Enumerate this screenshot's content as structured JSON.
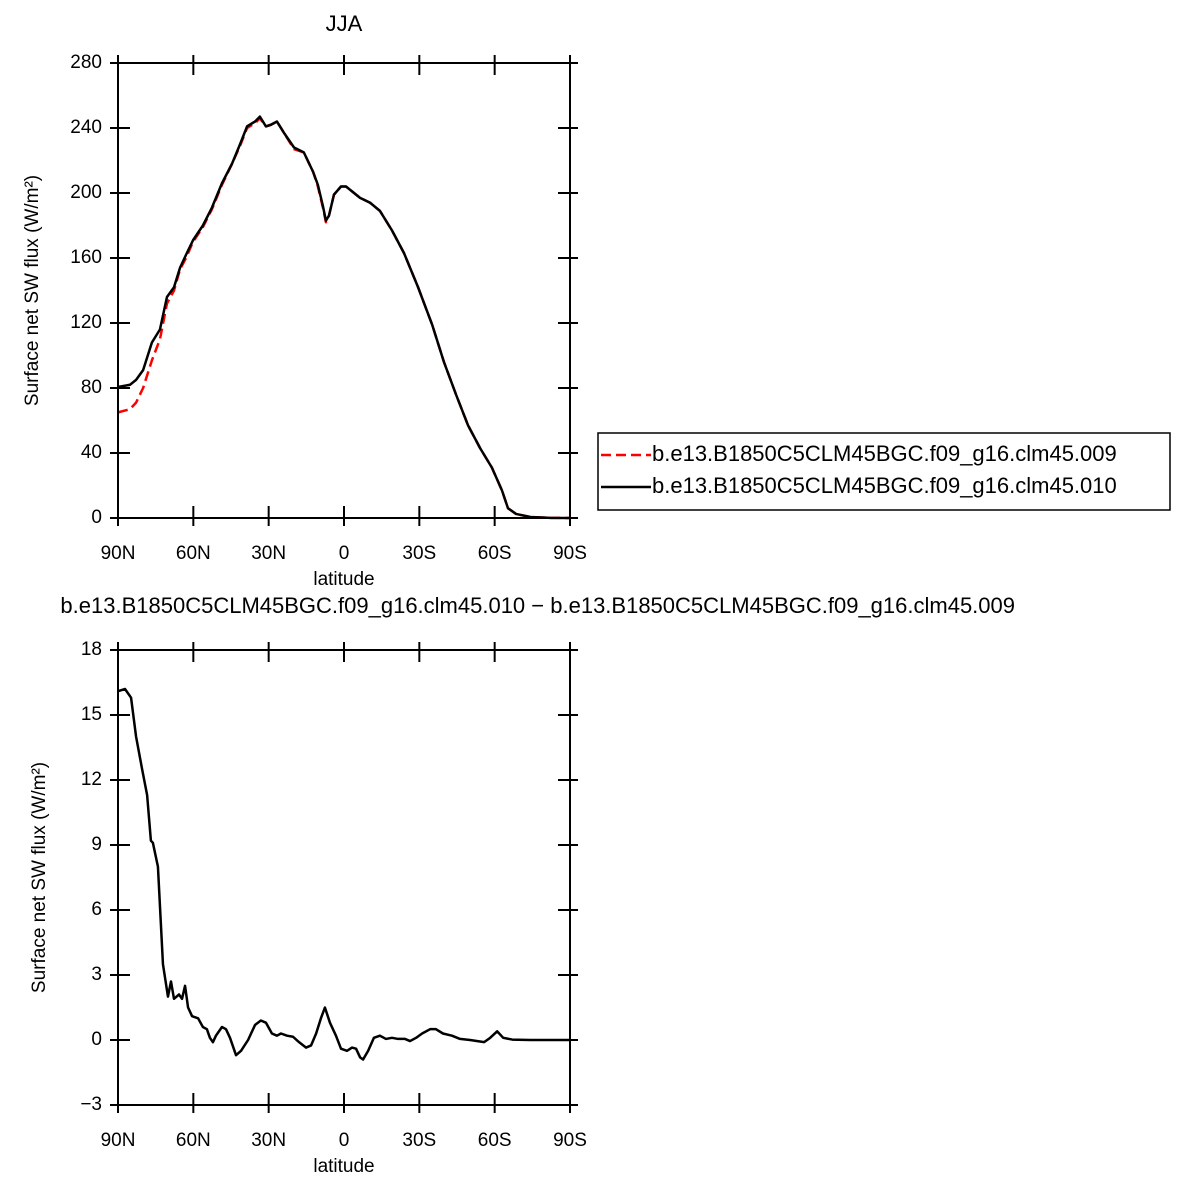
{
  "chart_data": [
    {
      "type": "line",
      "title": "JJA",
      "xlabel": "latitude",
      "ylabel": "Surface net SW flux (W/m²)",
      "x": [
        90,
        85.2,
        82.8,
        80,
        76.5,
        73.3,
        70.5,
        67.7,
        65.3,
        62.9,
        60.1,
        56.2,
        52.6,
        48.6,
        44.6,
        41.4,
        38.6,
        35.4,
        33.5,
        31.1,
        29.1,
        26.7,
        23.9,
        19.9,
        16,
        12.3,
        10.4,
        8.4,
        7.2,
        6,
        4,
        1.2,
        -0.8,
        -3.2,
        -6.4,
        -10.4,
        -14.3,
        -19.1,
        -23.9,
        -29.5,
        -35.1,
        -39.8,
        -44.6,
        -49.4,
        -54.2,
        -58.9,
        -62.9,
        -65.3,
        -68.5,
        -74.2,
        -82.2,
        -90
      ],
      "series": [
        {
          "name": "b.e13.B1850C5CLM45BGC.f09_g16.clm45.009",
          "color": "#ff0000",
          "line_style": "dashed",
          "values": [
            65,
            67,
            71,
            80,
            97,
            110,
            132,
            140,
            153,
            160,
            170,
            179,
            190,
            205,
            218,
            229,
            240,
            243,
            246,
            241,
            242,
            244,
            237,
            227,
            225,
            213,
            204,
            191,
            182,
            186,
            199,
            204,
            204,
            201,
            197,
            194,
            189,
            177,
            163,
            142,
            119,
            96,
            76,
            57,
            43,
            31,
            17,
            6,
            2.5,
            0.6,
            0.1,
            0
          ]
        },
        {
          "name": "b.e13.B1850C5CLM45BGC.f09_g16.clm45.010",
          "color": "#000000",
          "line_style": "solid",
          "values": [
            80.6,
            82,
            85,
            91,
            108,
            116,
            136,
            142,
            154,
            162,
            171,
            180,
            191,
            206,
            218,
            230,
            241,
            244,
            247,
            241,
            242,
            244,
            237,
            228,
            225,
            213,
            205,
            192,
            183,
            186,
            199,
            204,
            204,
            201,
            197,
            194,
            189,
            177,
            163,
            142,
            119,
            96,
            76,
            57,
            43,
            31,
            17,
            6,
            2.5,
            0.6,
            0.1,
            0
          ]
        }
      ],
      "xlim": [
        90,
        -90
      ],
      "xticks": [
        {
          "value": 90,
          "label": "90N"
        },
        {
          "value": 60,
          "label": "60N"
        },
        {
          "value": 30,
          "label": "30N"
        },
        0,
        {
          "value": -30,
          "label": "30S"
        },
        {
          "value": -60,
          "label": "60S"
        },
        {
          "value": -90,
          "label": "90S"
        }
      ],
      "ylim": [
        0,
        280
      ],
      "yticks": [
        0,
        40,
        80,
        120,
        160,
        200,
        240,
        280
      ],
      "legend": "right"
    },
    {
      "type": "line",
      "title": "b.e13.B1850C5CLM45BGC.f09_g16.clm45.010 − b.e13.B1850C5CLM45BGC.f09_g16.clm45.009",
      "xlabel": "latitude",
      "ylabel": "Surface net SW flux (W/m²)",
      "x": [
        90,
        87.2,
        84.8,
        82.8,
        80.4,
        78.4,
        76.9,
        76.1,
        74.1,
        72.1,
        70.1,
        68.9,
        67.7,
        65.7,
        64.5,
        63.3,
        62.1,
        60.5,
        58.1,
        56.2,
        54.6,
        53.4,
        52.2,
        51,
        48.6,
        47,
        45.4,
        43,
        41,
        38.2,
        35.4,
        33.1,
        31.1,
        28.7,
        26.7,
        25.1,
        22.7,
        20.3,
        17.9,
        15.1,
        13.1,
        11.1,
        9.2,
        7.6,
        5.6,
        3.2,
        1.2,
        -1.2,
        -3.2,
        -4.8,
        -6.4,
        -7.6,
        -9.6,
        -11.9,
        -14.3,
        -16.7,
        -19.1,
        -21.5,
        -24.3,
        -26.3,
        -28.7,
        -31.1,
        -34.3,
        -36.6,
        -39.4,
        -43,
        -46.2,
        -50.2,
        -55.8,
        -58.2,
        -61,
        -63.4,
        -67,
        -74.2,
        -90
      ],
      "values": [
        16.1,
        16.2,
        15.8,
        14,
        12.5,
        11.3,
        9.2,
        9.1,
        8,
        3.5,
        2,
        2.7,
        1.9,
        2.1,
        1.9,
        2.5,
        1.5,
        1.1,
        1,
        0.6,
        0.5,
        0.1,
        -0.1,
        0.2,
        0.6,
        0.5,
        0.1,
        -0.7,
        -0.5,
        0,
        0.7,
        0.9,
        0.8,
        0.3,
        0.2,
        0.3,
        0.2,
        0.15,
        -0.1,
        -0.35,
        -0.25,
        0.3,
        1,
        1.5,
        0.8,
        0.2,
        -0.4,
        -0.5,
        -0.35,
        -0.4,
        -0.8,
        -0.9,
        -0.5,
        0.1,
        0.2,
        0.05,
        0.1,
        0.05,
        0.05,
        -0.05,
        0.1,
        0.3,
        0.5,
        0.5,
        0.3,
        0.2,
        0.05,
        0,
        -0.1,
        0.1,
        0.4,
        0.1,
        0.02,
        0,
        0
      ],
      "color": "#000000",
      "line_style": "solid",
      "xlim": [
        90,
        -90
      ],
      "xticks": [
        {
          "value": 90,
          "label": "90N"
        },
        {
          "value": 60,
          "label": "60N"
        },
        {
          "value": 30,
          "label": "30N"
        },
        0,
        {
          "value": -30,
          "label": "30S"
        },
        {
          "value": -60,
          "label": "60S"
        },
        {
          "value": -90,
          "label": "90S"
        }
      ],
      "ylim": [
        -3,
        18
      ],
      "yticks": [
        {
          "value": -3,
          "label": "−3"
        },
        0,
        3,
        6,
        9,
        12,
        15,
        18
      ]
    }
  ]
}
